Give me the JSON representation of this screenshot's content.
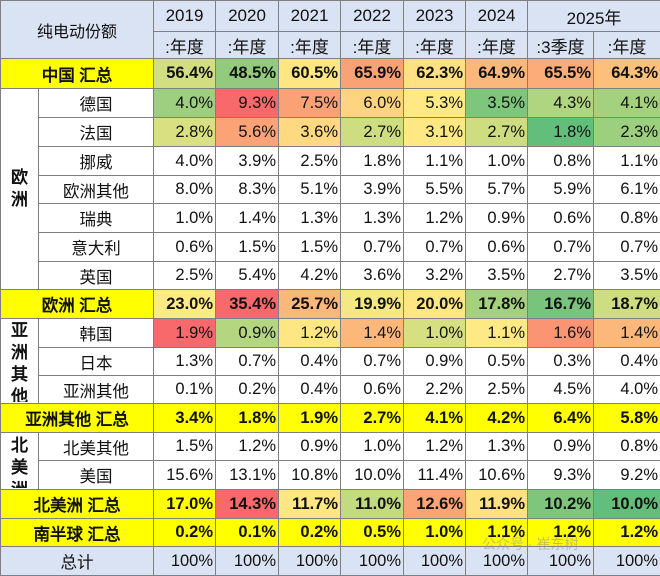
{
  "table": {
    "corner_label": "纯电动份额",
    "years": [
      "2019",
      "2020",
      "2021",
      "2022",
      "2023",
      "2024",
      "2025年"
    ],
    "periods": [
      ":年度",
      ":年度",
      ":年度",
      ":年度",
      ":年度",
      ":年度",
      ":3季度",
      ":年度"
    ],
    "rows": [
      {
        "label": "中国 汇总",
        "type": "sum",
        "values": [
          "56.4%",
          "48.5%",
          "60.5%",
          "65.9%",
          "62.3%",
          "64.9%",
          "65.5%",
          "64.3%"
        ],
        "colors": [
          "#d3de81",
          "#93ca7d",
          "#fee683",
          "#fba176",
          "#fee182",
          "#fcb87a",
          "#fbac78",
          "#fcc07b"
        ]
      },
      {
        "label": "德国",
        "group": "欧洲",
        "type": "item",
        "values": [
          "4.0%",
          "9.3%",
          "7.5%",
          "6.0%",
          "5.3%",
          "3.5%",
          "4.3%",
          "4.1%"
        ],
        "colors": [
          "#9dcf7e",
          "#f8696b",
          "#fba176",
          "#fed480",
          "#ffe984",
          "#7ec67c",
          "#b0d580",
          "#a3d17e"
        ]
      },
      {
        "label": "法国",
        "type": "item",
        "values": [
          "2.8%",
          "5.6%",
          "3.6%",
          "2.7%",
          "3.1%",
          "2.7%",
          "1.8%",
          "2.3%"
        ],
        "colors": [
          "#d9e082",
          "#fba276",
          "#fed981",
          "#cfdd81",
          "#fee883",
          "#cfdd81",
          "#63be7b",
          "#9ccf7e"
        ]
      },
      {
        "label": "挪威",
        "type": "item",
        "values": [
          "4.0%",
          "3.9%",
          "2.5%",
          "1.8%",
          "1.1%",
          "1.0%",
          "0.8%",
          "1.1%"
        ]
      },
      {
        "label": "欧洲其他",
        "type": "item",
        "values": [
          "8.0%",
          "8.3%",
          "5.1%",
          "3.9%",
          "5.5%",
          "5.7%",
          "5.9%",
          "6.1%"
        ]
      },
      {
        "label": "瑞典",
        "type": "item",
        "values": [
          "1.0%",
          "1.4%",
          "1.3%",
          "1.3%",
          "1.2%",
          "0.9%",
          "0.6%",
          "0.8%"
        ]
      },
      {
        "label": "意大利",
        "type": "item",
        "values": [
          "0.6%",
          "1.5%",
          "1.5%",
          "0.7%",
          "0.7%",
          "0.6%",
          "0.7%",
          "0.7%"
        ]
      },
      {
        "label": "英国",
        "type": "item",
        "values": [
          "2.5%",
          "5.4%",
          "4.2%",
          "3.6%",
          "3.2%",
          "3.5%",
          "2.7%",
          "3.5%"
        ]
      },
      {
        "label": "欧洲 汇总",
        "type": "sum",
        "values": [
          "23.0%",
          "35.4%",
          "25.7%",
          "19.9%",
          "20.0%",
          "17.8%",
          "16.7%",
          "18.7%"
        ],
        "colors": [
          "#ffeb84",
          "#f8696b",
          "#fcb77a",
          "#f3e884",
          "#fee783",
          "#a5d17e",
          "#78c47c",
          "#cfdd82"
        ]
      },
      {
        "label": "韩国",
        "group": "亚洲其他",
        "type": "item",
        "values": [
          "1.9%",
          "0.9%",
          "1.2%",
          "1.4%",
          "1.0%",
          "1.1%",
          "1.6%",
          "1.4%"
        ],
        "colors": [
          "#f8696b",
          "#b5d680",
          "#fee683",
          "#fcb87a",
          "#d6df81",
          "#ffe984",
          "#fa9473",
          "#fcb87a"
        ]
      },
      {
        "label": "日本",
        "type": "item",
        "values": [
          "1.3%",
          "0.7%",
          "0.4%",
          "0.7%",
          "0.9%",
          "0.5%",
          "0.3%",
          "0.4%"
        ]
      },
      {
        "label": "亚洲其他",
        "type": "item",
        "values": [
          "0.1%",
          "0.2%",
          "0.4%",
          "0.6%",
          "2.2%",
          "2.5%",
          "4.5%",
          "4.0%"
        ]
      },
      {
        "label": "亚洲其他 汇总",
        "type": "sum",
        "values": [
          "3.4%",
          "1.8%",
          "1.9%",
          "2.7%",
          "4.1%",
          "4.2%",
          "6.4%",
          "5.8%"
        ]
      },
      {
        "label": "北美其他",
        "group": "北美洲",
        "type": "item",
        "values": [
          "1.5%",
          "1.2%",
          "0.9%",
          "1.0%",
          "1.2%",
          "1.3%",
          "0.9%",
          "0.8%"
        ]
      },
      {
        "label": "美国",
        "type": "item",
        "values": [
          "15.6%",
          "13.1%",
          "10.8%",
          "10.0%",
          "11.4%",
          "10.6%",
          "9.3%",
          "9.2%"
        ]
      },
      {
        "label": "北美洲 汇总",
        "type": "sum",
        "values": [
          "17.0%",
          "14.3%",
          "11.7%",
          "11.0%",
          "12.6%",
          "11.9%",
          "10.2%",
          "10.0%"
        ],
        "colors": [
          "#ffff00",
          "#f8696b",
          "#fee683",
          "#c2da80",
          "#fba476",
          "#fee182",
          "#7ec67c",
          "#63be7b"
        ]
      },
      {
        "label": "南半球 汇总",
        "type": "sum",
        "values": [
          "0.2%",
          "0.1%",
          "0.2%",
          "0.5%",
          "1.0%",
          "1.1%",
          "1.2%",
          "1.2%"
        ]
      },
      {
        "label": "总计",
        "type": "total",
        "values": [
          "100%",
          "100%",
          "100%",
          "100%",
          "100%",
          "100%",
          "100%",
          "100%"
        ]
      }
    ],
    "group_spans": {
      "欧洲": 7,
      "亚洲其他": 3,
      "北美洲": 2
    }
  },
  "watermark": "公众号 · 崔东树"
}
